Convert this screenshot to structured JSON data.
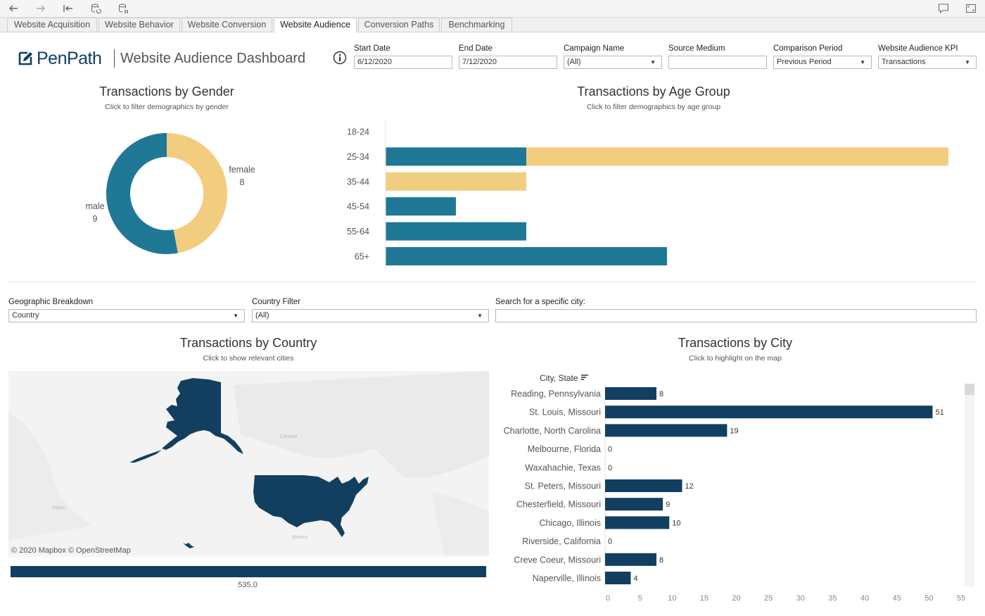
{
  "toolbar": {
    "back_icon": "arrow-left-icon",
    "forward_icon": "arrow-right-icon",
    "first_icon": "skip-back-icon",
    "refresh_icon": "refresh-data-icon",
    "pause_icon": "pause-updates-icon",
    "comment_icon": "comment-icon",
    "fullscreen_icon": "fullscreen-icon"
  },
  "tabs": [
    {
      "label": "Website Acquisition"
    },
    {
      "label": "Website Behavior"
    },
    {
      "label": "Website Conversion"
    },
    {
      "label": "Website Audience"
    },
    {
      "label": "Conversion Paths"
    },
    {
      "label": "Benchmarking"
    }
  ],
  "header": {
    "logo": "PenPath",
    "title": "Website Audience Dashboard"
  },
  "filters": {
    "start_date": {
      "label": "Start Date",
      "value": "6/12/2020"
    },
    "end_date": {
      "label": "End Date",
      "value": "7/12/2020"
    },
    "campaign": {
      "label": "Campaign Name",
      "value": "(All)"
    },
    "source_medium": {
      "label": "Source Medium",
      "value": ""
    },
    "comparison": {
      "label": "Comparison Period",
      "value": "Previous Period"
    },
    "kpi": {
      "label": "Website Audience KPI",
      "value": "Transactions"
    },
    "geo": {
      "label": "Geographic Breakdown",
      "value": "Country"
    },
    "country": {
      "label": "Country Filter",
      "value": "(All)"
    },
    "city_search": {
      "label": "Search for a specific city:",
      "value": ""
    }
  },
  "gender_chart": {
    "title": "Transactions by Gender",
    "subtitle": "Click to filter demographics by gender",
    "female_label": "female",
    "female_value": "8",
    "male_label": "male",
    "male_value": "9"
  },
  "age_chart": {
    "title": "Transactions by Age Group",
    "subtitle": "Click to filter demographics by age group"
  },
  "country_chart": {
    "title": "Transactions by Country",
    "subtitle": "Click to show relevant cities",
    "attribution": "© 2020 Mapbox  © OpenStreetMap",
    "map_label_canada": "Canada",
    "map_label_mexico": "Mexico",
    "map_label_japan": "Japan",
    "total_label": "535.0",
    "total_fill": 1.0
  },
  "city_chart": {
    "title": "Transactions by City",
    "subtitle": "Click to highlight on the map",
    "header": "City, State"
  },
  "colors": {
    "teal": "#1f7896",
    "yellow": "#f2cd80",
    "navy": "#123f60"
  },
  "chart_data": [
    {
      "type": "pie",
      "title": "Transactions by Gender",
      "categories": [
        "male",
        "female"
      ],
      "values": [
        9,
        8
      ]
    },
    {
      "type": "bar",
      "title": "Transactions by Age Group",
      "categories": [
        "18-24",
        "25-34",
        "35-44",
        "45-54",
        "55-64",
        "65+"
      ],
      "series": [
        {
          "name": "male",
          "values": [
            0,
            2,
            0,
            1,
            2,
            4
          ]
        },
        {
          "name": "female",
          "values": [
            0,
            6,
            2,
            0,
            0,
            0
          ]
        }
      ],
      "xlim": [
        0,
        8
      ]
    },
    {
      "type": "bar",
      "title": "Transactions by City",
      "ylabel": "City, State",
      "categories": [
        "Reading, Pennsylvania",
        "St. Louis, Missouri",
        "Charlotte, North Carolina",
        "Melbourne, Florida",
        "Waxahachie, Texas",
        "St. Peters, Missouri",
        "Chesterfield, Missouri",
        "Chicago, Illinois",
        "Riverside, California",
        "Creve Coeur, Missouri",
        "Naperville, Illinois"
      ],
      "values": [
        8,
        51,
        19,
        0,
        0,
        12,
        9,
        10,
        0,
        8,
        4
      ],
      "xticks": [
        0,
        5,
        10,
        15,
        20,
        25,
        30,
        35,
        40,
        45,
        50,
        55
      ],
      "xlim": [
        0,
        55
      ]
    }
  ]
}
